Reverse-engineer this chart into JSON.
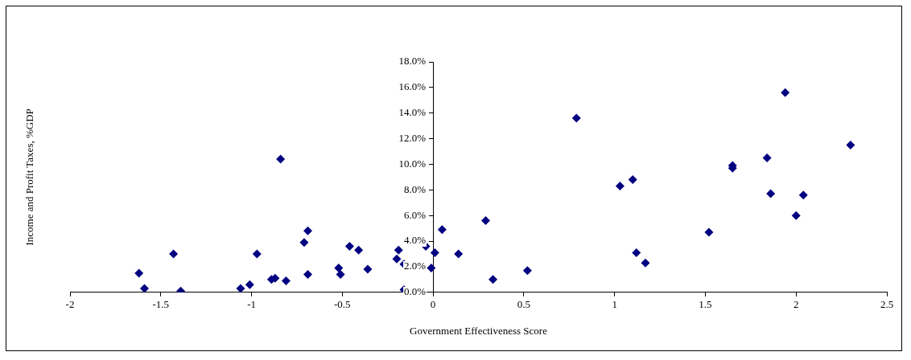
{
  "chart_data": {
    "type": "scatter",
    "xlabel": "Government Effectiveness Score",
    "ylabel": "Income and Profit Taxes, %GDP",
    "marker": "diamond",
    "grid": false,
    "legend": false,
    "xlim": [
      -2,
      2.5
    ],
    "xticks": [
      {
        "value": -2,
        "label": "-2"
      },
      {
        "value": -1.5,
        "label": "-1.5"
      },
      {
        "value": -1,
        "label": "-1"
      },
      {
        "value": -0.5,
        "label": "-0.5"
      },
      {
        "value": 0,
        "label": "0"
      },
      {
        "value": 0.5,
        "label": "0.5"
      },
      {
        "value": 1,
        "label": "1"
      },
      {
        "value": 1.5,
        "label": "1.5"
      },
      {
        "value": 2,
        "label": "2"
      },
      {
        "value": 2.5,
        "label": "2.5"
      }
    ],
    "ylim": [
      0,
      18
    ],
    "yticks": [
      {
        "value": 0,
        "label": "0.0%"
      },
      {
        "value": 2,
        "label": "2.0%"
      },
      {
        "value": 4,
        "label": "4.0%"
      },
      {
        "value": 6,
        "label": "6.0%"
      },
      {
        "value": 8,
        "label": "8.0%"
      },
      {
        "value": 10,
        "label": "10.0%"
      },
      {
        "value": 12,
        "label": "12.0%"
      },
      {
        "value": 14,
        "label": "14.0%"
      },
      {
        "value": 16,
        "label": "16.0%"
      },
      {
        "value": 18,
        "label": "18.0%"
      }
    ],
    "series": [
      {
        "color": "#000080",
        "x": [
          -1.62,
          -1.59,
          -1.43,
          -1.39,
          -1.06,
          -1.01,
          -0.97,
          -0.89,
          -0.87,
          -0.84,
          -0.81,
          -0.71,
          -0.69,
          -0.69,
          -0.52,
          -0.51,
          -0.46,
          -0.41,
          -0.36,
          -0.19,
          -0.2,
          -0.16,
          -0.16,
          -0.04,
          -0.01,
          0.01,
          0.05,
          0.14,
          0.29,
          0.33,
          0.52,
          0.79,
          1.03,
          1.1,
          1.12,
          1.17,
          1.52,
          1.65,
          1.65,
          1.84,
          1.86,
          1.94,
          2.0,
          2.04,
          2.3
        ],
        "values": [
          1.5,
          0.3,
          3.0,
          0.1,
          0.3,
          0.6,
          3.0,
          1.0,
          1.1,
          10.4,
          0.9,
          3.9,
          4.8,
          1.4,
          1.9,
          1.4,
          3.6,
          3.3,
          1.8,
          3.3,
          2.6,
          2.2,
          0.2,
          3.6,
          1.9,
          3.1,
          4.9,
          3.0,
          5.6,
          1.0,
          1.7,
          13.6,
          8.3,
          8.8,
          3.1,
          2.3,
          4.7,
          9.9,
          9.7,
          10.5,
          7.7,
          15.6,
          6.0,
          7.6,
          11.5
        ]
      }
    ]
  }
}
